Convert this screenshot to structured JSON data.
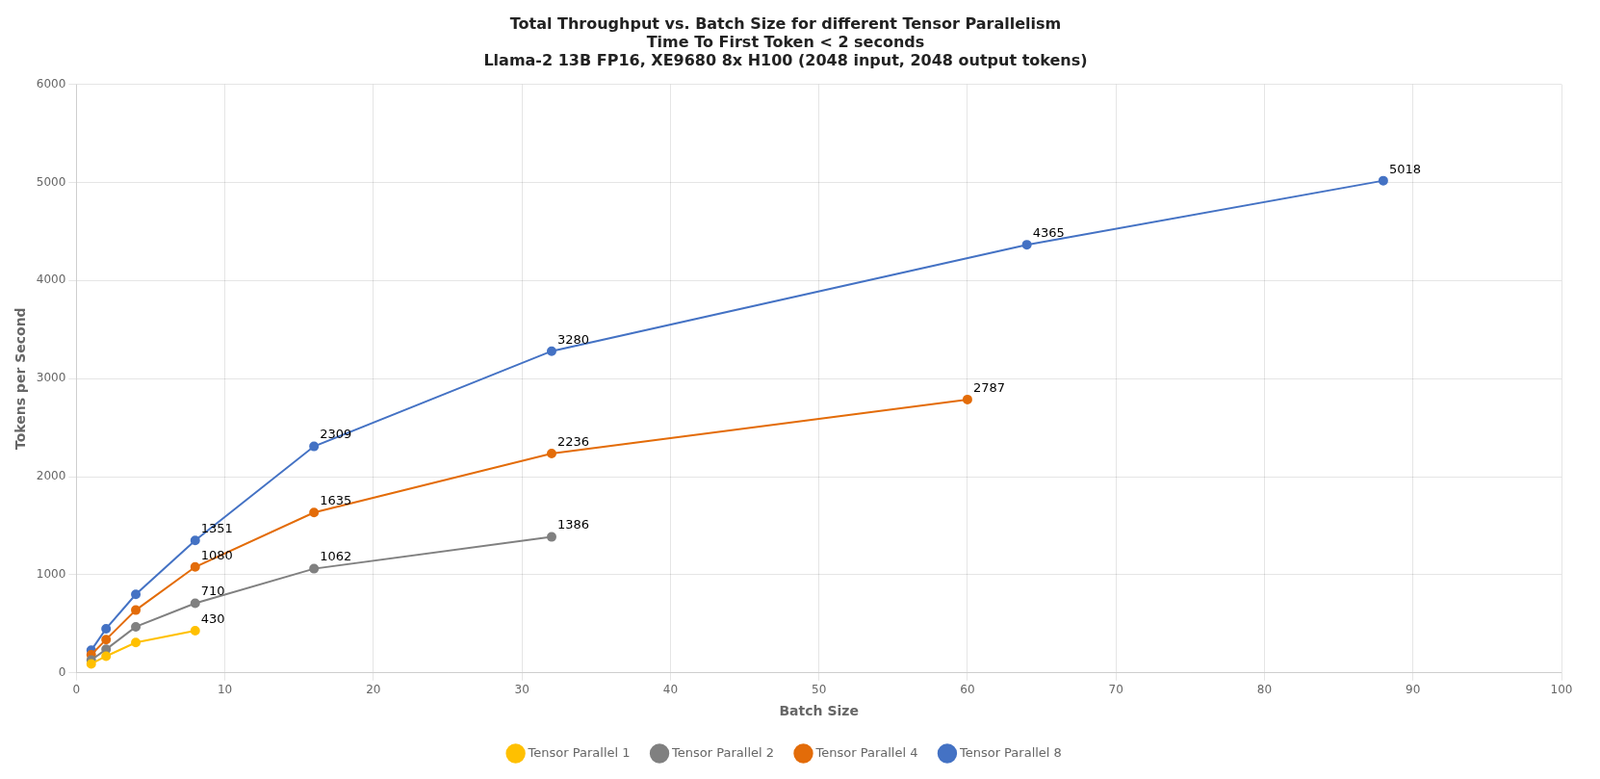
{
  "chart_data": {
    "type": "line",
    "title": [
      "Total Throughput vs. Batch Size for different Tensor Parallelism",
      "Time To First Token < 2 seconds",
      "Llama-2 13B FP16, XE9680 8x H100 (2048 input, 2048 output tokens)"
    ],
    "xlabel": "Batch Size",
    "ylabel": "Tokens per Second",
    "xlim": [
      0,
      100
    ],
    "ylim": [
      0,
      6000
    ],
    "xticks": [
      0,
      10,
      20,
      30,
      40,
      50,
      60,
      70,
      80,
      90,
      100
    ],
    "yticks": [
      0,
      1000,
      2000,
      3000,
      4000,
      5000,
      6000
    ],
    "grid": true,
    "legend": "bottom",
    "marker": "circle",
    "series": [
      {
        "name": "Tensor Parallel 1",
        "color": "#FFC000",
        "x": [
          1,
          2,
          4,
          8
        ],
        "values": [
          92,
          170,
          310,
          430
        ],
        "annotations": [
          {
            "x": 8,
            "y": 430,
            "text": "430"
          }
        ]
      },
      {
        "name": "Tensor Parallel 2",
        "color": "#808080",
        "x": [
          1,
          2,
          4,
          8,
          16,
          32
        ],
        "values": [
          130,
          240,
          470,
          710,
          1062,
          1386
        ],
        "annotations": [
          {
            "x": 8,
            "y": 710,
            "text": "710"
          },
          {
            "x": 16,
            "y": 1062,
            "text": "1062"
          },
          {
            "x": 32,
            "y": 1386,
            "text": "1386"
          }
        ]
      },
      {
        "name": "Tensor Parallel 4",
        "color": "#E36C09",
        "x": [
          1,
          2,
          4,
          8,
          16,
          32,
          60
        ],
        "values": [
          185,
          340,
          640,
          1080,
          1635,
          2236,
          2787
        ],
        "annotations": [
          {
            "x": 8,
            "y": 1080,
            "text": "1080"
          },
          {
            "x": 16,
            "y": 1635,
            "text": "1635"
          },
          {
            "x": 32,
            "y": 2236,
            "text": "2236"
          },
          {
            "x": 60,
            "y": 2787,
            "text": "2787"
          }
        ]
      },
      {
        "name": "Tensor Parallel 8",
        "color": "#4472C4",
        "x": [
          1,
          2,
          4,
          8,
          16,
          32,
          64,
          88
        ],
        "values": [
          230,
          450,
          800,
          1351,
          2309,
          3280,
          4365,
          5018
        ],
        "annotations": [
          {
            "x": 8,
            "y": 1351,
            "text": "1351"
          },
          {
            "x": 16,
            "y": 2309,
            "text": "2309"
          },
          {
            "x": 32,
            "y": 3280,
            "text": "3280"
          },
          {
            "x": 64,
            "y": 4365,
            "text": "4365"
          },
          {
            "x": 88,
            "y": 5018,
            "text": "5018"
          }
        ]
      }
    ]
  }
}
